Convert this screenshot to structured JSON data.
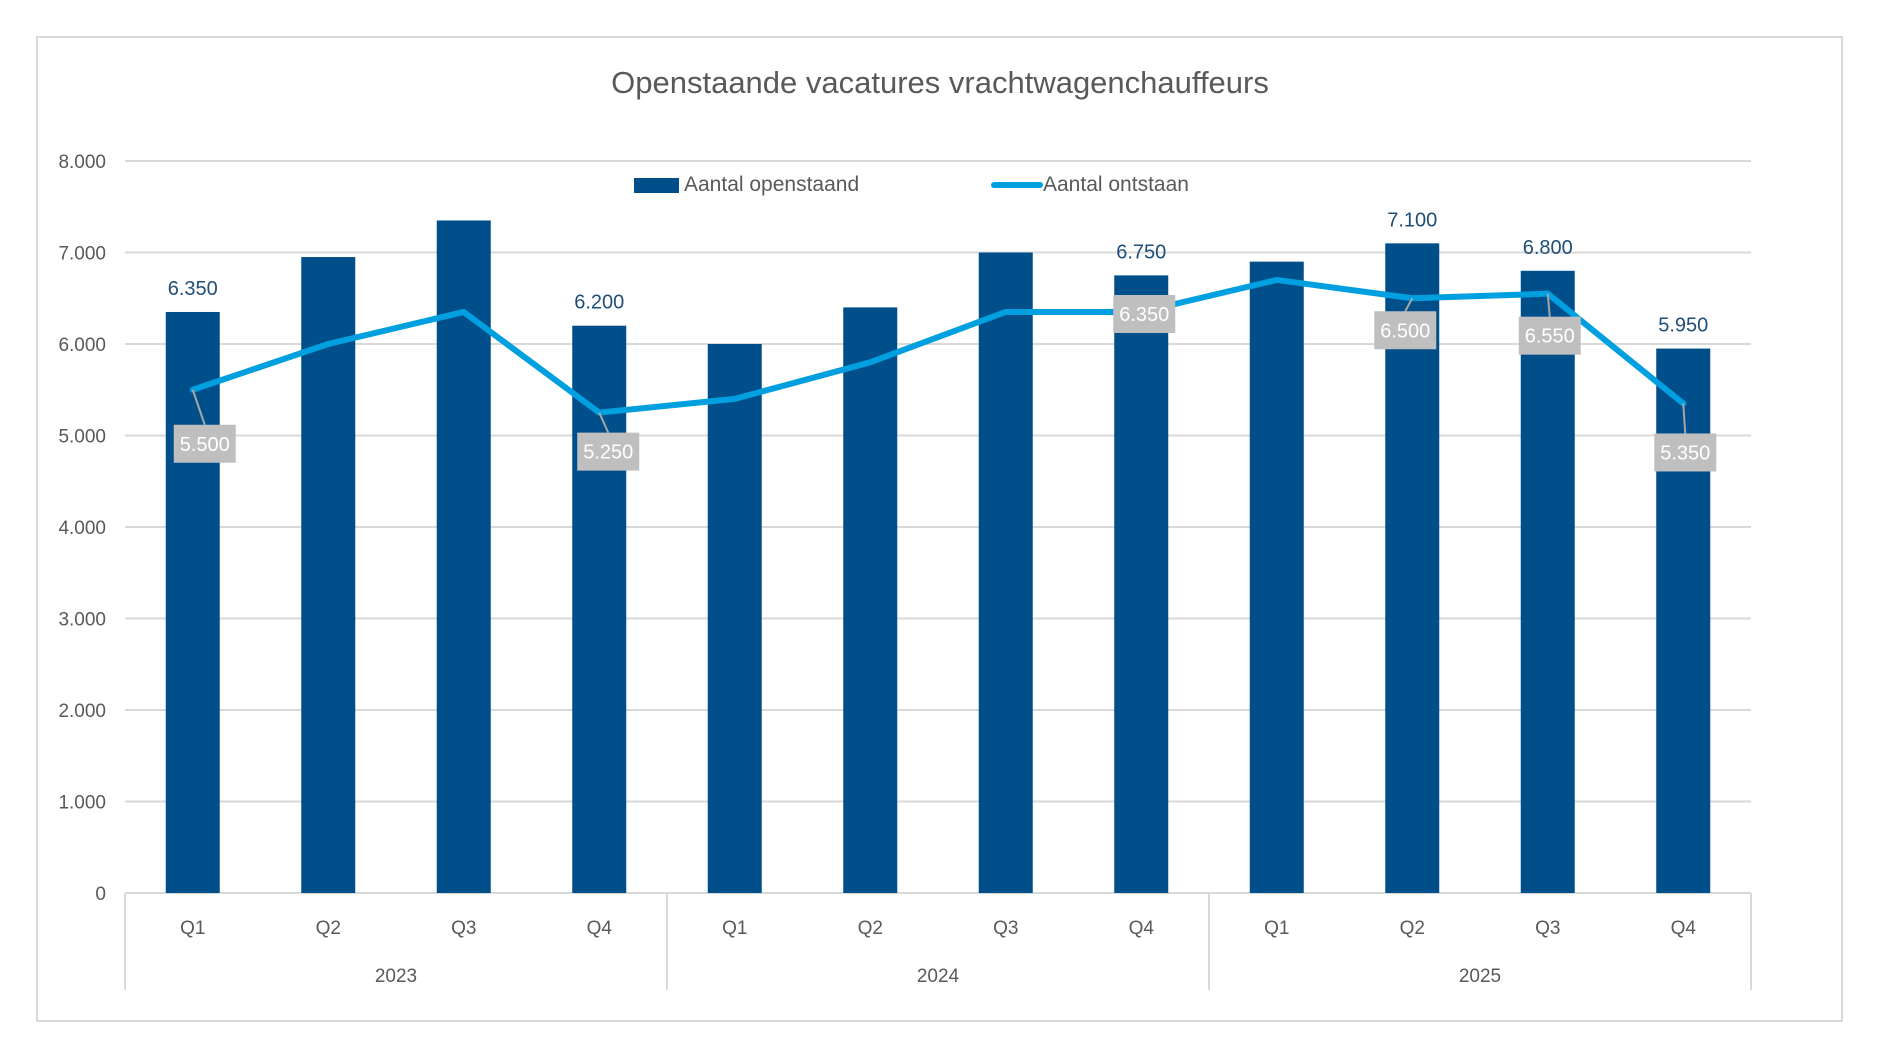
{
  "chart_data": {
    "type": "bar",
    "title": "Openstaande vacatures vrachtwagenchauffeurs",
    "xlabel": "",
    "ylabel": "",
    "ylim": [
      0,
      8000
    ],
    "y_ticks": [
      0,
      1000,
      2000,
      3000,
      4000,
      5000,
      6000,
      7000,
      8000
    ],
    "y_tick_labels": [
      "0",
      "1.000",
      "2.000",
      "3.000",
      "4.000",
      "5.000",
      "6.000",
      "7.000",
      "8.000"
    ],
    "grid": true,
    "legend_position": "top-center",
    "categories": [
      "Q1",
      "Q2",
      "Q3",
      "Q4",
      "Q1",
      "Q2",
      "Q3",
      "Q4",
      "Q1",
      "Q2",
      "Q3",
      "Q4"
    ],
    "category_groups": [
      {
        "label": "2023",
        "count": 4
      },
      {
        "label": "2024",
        "count": 4
      },
      {
        "label": "2025",
        "count": 4
      }
    ],
    "series": [
      {
        "name": "Aantal openstaand",
        "type": "bar",
        "color": "#004f8a",
        "values": [
          6350,
          6950,
          7350,
          6200,
          6000,
          6400,
          7000,
          6750,
          6900,
          7100,
          6800,
          5950
        ],
        "labels": [
          "6.350",
          null,
          null,
          "6.200",
          null,
          null,
          null,
          "6.750",
          null,
          "7.100",
          "6.800",
          "5.950"
        ]
      },
      {
        "name": "Aantal ontstaan",
        "type": "line",
        "color": "#00a0e0",
        "values": [
          5500,
          6000,
          6350,
          5250,
          5400,
          5800,
          6350,
          6350,
          6700,
          6500,
          6550,
          5350
        ],
        "labels": [
          "5.500",
          null,
          null,
          "5.250",
          null,
          null,
          null,
          "6.350",
          null,
          "6.500",
          "6.550",
          "5.350"
        ]
      }
    ]
  },
  "colors": {
    "bar": "#004f8a",
    "line": "#00a0e0",
    "bar_label": "#1f4e79",
    "line_label_box": "#bfbfbf",
    "gridline": "#d9d9d9",
    "axis_text": "#595959"
  }
}
